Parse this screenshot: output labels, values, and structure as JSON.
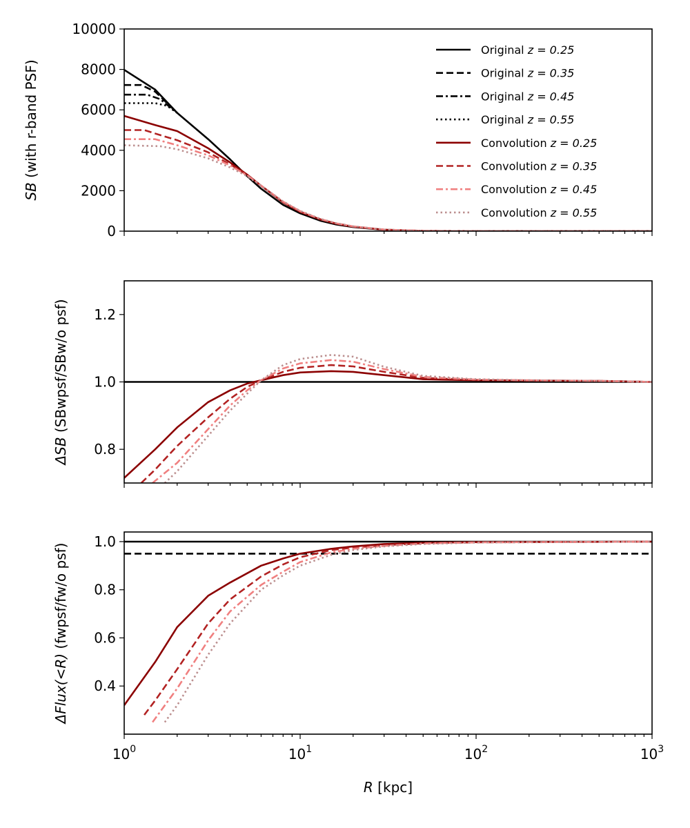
{
  "chart_data": [
    {
      "type": "line",
      "id": "sb",
      "ylabel_main": "SB",
      "ylabel_rest": " (with r-band PSF)",
      "xscale": "log",
      "xlim": [
        1,
        1000
      ],
      "ylim": [
        0,
        10000
      ],
      "yticks": [
        0,
        2000,
        4000,
        6000,
        8000,
        10000
      ],
      "ytick_labels": [
        "0",
        "2000",
        "4000",
        "6000",
        "8000",
        "10000"
      ],
      "legend_position": "top-right",
      "legend": [
        {
          "text": "Original",
          "z": "z = 0.25",
          "color": "#000000",
          "dash": "solid"
        },
        {
          "text": "Original",
          "z": "z = 0.35",
          "color": "#000000",
          "dash": "dashed"
        },
        {
          "text": "Original",
          "z": "z = 0.45",
          "color": "#000000",
          "dash": "dashdot"
        },
        {
          "text": "Original",
          "z": "z = 0.55",
          "color": "#000000",
          "dash": "dotted"
        },
        {
          "text": "Convolution",
          "z": "z = 0.25",
          "color": "#8b0000",
          "dash": "solid"
        },
        {
          "text": "Convolution",
          "z": "z = 0.35",
          "color": "#b22222",
          "dash": "dashed"
        },
        {
          "text": "Convolution",
          "z": "z = 0.45",
          "color": "#f08080",
          "dash": "dashdot"
        },
        {
          "text": "Convolution",
          "z": "z = 0.55",
          "color": "#bc8f8f",
          "dash": "dotted"
        }
      ],
      "series": [
        {
          "name": "Original z=0.25",
          "color": "#000000",
          "dash": "solid",
          "x": [
            1.0,
            1.5,
            2.0,
            3.0,
            4.0,
            5.0,
            6.0,
            8.0,
            10,
            13,
            16,
            20,
            30,
            50,
            100,
            1000
          ],
          "y": [
            7980,
            7000,
            5850,
            4550,
            3550,
            2720,
            2100,
            1300,
            880,
            520,
            330,
            200,
            60,
            10,
            0,
            0
          ]
        },
        {
          "name": "Original z=0.35",
          "color": "#000000",
          "dash": "dashed",
          "x": [
            1.0,
            1.25,
            1.5,
            2.0
          ],
          "y": [
            7230,
            7230,
            6900,
            5850
          ]
        },
        {
          "name": "Original z=0.45",
          "color": "#000000",
          "dash": "dashdot",
          "x": [
            1.0,
            1.35,
            1.6,
            2.0
          ],
          "y": [
            6750,
            6750,
            6530,
            5850
          ]
        },
        {
          "name": "Original z=0.55",
          "color": "#000000",
          "dash": "dotted",
          "x": [
            1.0,
            1.5,
            1.75,
            2.0
          ],
          "y": [
            6330,
            6330,
            6200,
            5850
          ]
        },
        {
          "name": "Convolution z=0.25",
          "color": "#8b0000",
          "dash": "solid",
          "x": [
            1.0,
            1.5,
            2.0,
            3.0,
            4.0,
            5.0,
            6.0,
            8.0,
            10,
            13,
            16,
            20,
            30,
            50,
            100,
            1000
          ],
          "y": [
            5700,
            5250,
            4950,
            4100,
            3400,
            2800,
            2250,
            1420,
            950,
            580,
            370,
            220,
            70,
            15,
            0,
            0
          ]
        },
        {
          "name": "Convolution z=0.35",
          "color": "#b22222",
          "dash": "dashed",
          "x": [
            1.0,
            1.3,
            1.6,
            2.0,
            3.0,
            4.0,
            5.0,
            6.0,
            8.0,
            10,
            13,
            16,
            20,
            30,
            50,
            100,
            1000
          ],
          "y": [
            5000,
            5000,
            4750,
            4500,
            3900,
            3300,
            2780,
            2250,
            1440,
            970,
            590,
            380,
            230,
            75,
            15,
            0,
            0
          ]
        },
        {
          "name": "Convolution z=0.45",
          "color": "#f08080",
          "dash": "dashdot",
          "x": [
            1.0,
            1.5,
            2.0,
            3.0,
            4.0,
            5.0,
            6.0,
            8.0,
            10,
            13,
            16,
            20,
            30,
            50,
            100,
            1000
          ],
          "y": [
            4550,
            4550,
            4250,
            3750,
            3250,
            2760,
            2260,
            1460,
            990,
            600,
            390,
            235,
            78,
            15,
            0,
            0
          ]
        },
        {
          "name": "Convolution z=0.55",
          "color": "#bc8f8f",
          "dash": "dotted",
          "x": [
            1.0,
            1.6,
            2.0,
            3.0,
            4.0,
            5.0,
            6.0,
            8.0,
            10,
            13,
            16,
            20,
            30,
            50,
            100,
            1000
          ],
          "y": [
            4250,
            4200,
            4050,
            3600,
            3150,
            2720,
            2250,
            1470,
            1000,
            610,
            395,
            240,
            80,
            16,
            0,
            0
          ]
        }
      ]
    },
    {
      "type": "line",
      "id": "dsb",
      "ylabel_main": "ΔSB",
      "ylabel_rest": "  (SBwpsf/SBw/o psf)",
      "xscale": "log",
      "xlim": [
        1,
        1000
      ],
      "ylim": [
        0.7,
        1.3
      ],
      "yticks": [
        0.8,
        1.0,
        1.2
      ],
      "ytick_labels": [
        "0.8",
        "1.0",
        "1.2"
      ],
      "series": [
        {
          "name": "Reference 1.0",
          "color": "#000000",
          "dash": "solid",
          "x": [
            1,
            1000
          ],
          "y": [
            1.0,
            1.0
          ]
        },
        {
          "name": "Convolution z=0.25",
          "color": "#8b0000",
          "dash": "solid",
          "x": [
            1.0,
            1.5,
            2.0,
            3.0,
            4.0,
            5.0,
            6.0,
            8.0,
            10,
            15,
            20,
            30,
            50,
            100,
            200,
            500,
            1000
          ],
          "y": [
            0.715,
            0.8,
            0.865,
            0.94,
            0.975,
            0.995,
            1.005,
            1.02,
            1.028,
            1.032,
            1.03,
            1.02,
            1.008,
            1.005,
            1.004,
            1.003,
            1.0
          ]
        },
        {
          "name": "Convolution z=0.35",
          "color": "#b22222",
          "dash": "dashed",
          "x": [
            1.25,
            1.5,
            2.0,
            3.0,
            4.0,
            5.0,
            6.0,
            8.0,
            10,
            15,
            20,
            30,
            50,
            100,
            200,
            500,
            1000
          ],
          "y": [
            0.7,
            0.74,
            0.81,
            0.895,
            0.95,
            0.985,
            1.005,
            1.03,
            1.042,
            1.05,
            1.046,
            1.03,
            1.012,
            1.006,
            1.004,
            1.003,
            1.0
          ]
        },
        {
          "name": "Convolution z=0.45",
          "color": "#f08080",
          "dash": "dashdot",
          "x": [
            1.45,
            2.0,
            3.0,
            4.0,
            5.0,
            6.0,
            8.0,
            10,
            15,
            20,
            30,
            50,
            100,
            200,
            500,
            1000
          ],
          "y": [
            0.7,
            0.76,
            0.86,
            0.93,
            0.975,
            1.005,
            1.04,
            1.055,
            1.065,
            1.06,
            1.038,
            1.015,
            1.007,
            1.005,
            1.003,
            1.0
          ]
        },
        {
          "name": "Convolution z=0.55",
          "color": "#bc8f8f",
          "dash": "dotted",
          "x": [
            1.7,
            2.0,
            3.0,
            4.0,
            5.0,
            6.0,
            8.0,
            10,
            15,
            20,
            30,
            50,
            100,
            200,
            500,
            1000
          ],
          "y": [
            0.7,
            0.735,
            0.84,
            0.915,
            0.965,
            1.005,
            1.05,
            1.068,
            1.08,
            1.075,
            1.045,
            1.018,
            1.008,
            1.005,
            1.003,
            1.0
          ]
        }
      ]
    },
    {
      "type": "line",
      "id": "dflux",
      "ylabel_main": "ΔFlux(<R)",
      "ylabel_rest": "  (fwpsf/fw/o psf)",
      "xscale": "log",
      "xlim": [
        1,
        1000
      ],
      "ylim": [
        0.2,
        1.04
      ],
      "yticks": [
        0.4,
        0.6,
        0.8,
        1.0
      ],
      "ytick_labels": [
        "0.4",
        "0.6",
        "0.8",
        "1.0"
      ],
      "xticks_labels": [
        "10",
        "10",
        "10",
        "10"
      ],
      "xticks_exp": [
        "0",
        "1",
        "2",
        "3"
      ],
      "xlabel_main": "R",
      "xlabel_rest": " [kpc]",
      "series": [
        {
          "name": "Reference 1.0",
          "color": "#000000",
          "dash": "solid",
          "x": [
            1,
            1000
          ],
          "y": [
            1.0,
            1.0
          ]
        },
        {
          "name": "Reference 0.95",
          "color": "#000000",
          "dash": "dashed",
          "x": [
            1,
            1000
          ],
          "y": [
            0.95,
            0.95
          ]
        },
        {
          "name": "Convolution z=0.25",
          "color": "#8b0000",
          "dash": "solid",
          "x": [
            1.0,
            1.5,
            2.0,
            3.0,
            4.0,
            6.0,
            8.0,
            10,
            15,
            20,
            30,
            50,
            100,
            1000
          ],
          "y": [
            0.32,
            0.5,
            0.645,
            0.775,
            0.83,
            0.9,
            0.93,
            0.95,
            0.97,
            0.98,
            0.99,
            0.995,
            0.998,
            1.0
          ]
        },
        {
          "name": "Convolution z=0.35",
          "color": "#b22222",
          "dash": "dashed",
          "x": [
            1.3,
            1.5,
            2.0,
            3.0,
            4.0,
            6.0,
            8.0,
            10,
            15,
            20,
            30,
            50,
            100,
            1000
          ],
          "y": [
            0.28,
            0.34,
            0.47,
            0.66,
            0.76,
            0.855,
            0.905,
            0.935,
            0.965,
            0.975,
            0.985,
            0.993,
            0.997,
            1.0
          ]
        },
        {
          "name": "Convolution z=0.45",
          "color": "#f08080",
          "dash": "dashdot",
          "x": [
            1.45,
            2.0,
            3.0,
            4.0,
            6.0,
            8.0,
            10,
            15,
            20,
            30,
            50,
            100,
            1000
          ],
          "y": [
            0.25,
            0.39,
            0.59,
            0.71,
            0.82,
            0.875,
            0.915,
            0.955,
            0.97,
            0.982,
            0.992,
            0.997,
            1.0
          ]
        },
        {
          "name": "Convolution z=0.55",
          "color": "#bc8f8f",
          "dash": "dotted",
          "x": [
            1.7,
            2.0,
            3.0,
            4.0,
            6.0,
            8.0,
            10,
            15,
            20,
            30,
            50,
            100,
            1000
          ],
          "y": [
            0.25,
            0.32,
            0.53,
            0.66,
            0.8,
            0.86,
            0.9,
            0.945,
            0.965,
            0.98,
            0.99,
            0.996,
            1.0
          ]
        }
      ]
    }
  ]
}
